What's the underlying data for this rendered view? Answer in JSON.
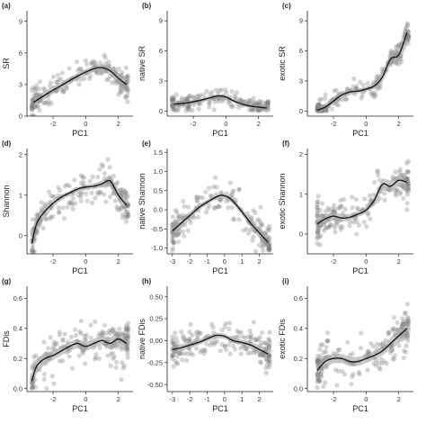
{
  "chart_data": [
    {
      "type": "scatter",
      "tag": "(a)",
      "xlabel": "PC1",
      "ylabel": "SR",
      "xlim": [
        -3.6,
        2.9
      ],
      "ylim": [
        0,
        10
      ],
      "xticks": [
        -2,
        0,
        2
      ],
      "yticks": [
        0,
        3,
        6,
        9
      ],
      "grid": false,
      "legend": "none",
      "smooth": {
        "x": [
          -3.2,
          -2.5,
          -1.5,
          -0.5,
          0.5,
          1.0,
          1.5,
          2.0,
          2.5
        ],
        "y": [
          1.3,
          2.0,
          2.9,
          3.8,
          4.5,
          4.6,
          4.3,
          3.6,
          3.0
        ]
      },
      "band": {
        "lower": [
          0.8,
          1.6,
          2.6,
          3.5,
          4.2,
          4.3,
          3.9,
          3.1,
          2.3
        ],
        "upper": [
          1.8,
          2.4,
          3.2,
          4.1,
          4.8,
          4.9,
          4.7,
          4.1,
          3.7
        ]
      },
      "cloud": {
        "count": 190,
        "spread": 1.5,
        "xmin": -3.3,
        "xmax": 2.6,
        "floor": 0
      }
    },
    {
      "type": "scatter",
      "tag": "(b)",
      "xlabel": "PC1",
      "ylabel": "native SR",
      "xlim": [
        -3.6,
        2.9
      ],
      "ylim": [
        -0.5,
        10
      ],
      "xticks": [
        -2,
        0,
        2
      ],
      "yticks": [
        0,
        3,
        6,
        9
      ],
      "grid": false,
      "legend": "none",
      "smooth": {
        "x": [
          -3.2,
          -2.5,
          -1.5,
          -0.5,
          0.0,
          0.5,
          1.0,
          1.5,
          2.0,
          2.5
        ],
        "y": [
          0.7,
          0.8,
          1.1,
          1.5,
          1.4,
          1.0,
          0.7,
          0.5,
          0.4,
          0.3
        ]
      },
      "band": {
        "lower": [
          0.4,
          0.6,
          0.9,
          1.3,
          1.2,
          0.8,
          0.5,
          0.3,
          0.1,
          -0.1
        ],
        "upper": [
          1.0,
          1.0,
          1.3,
          1.7,
          1.6,
          1.2,
          0.9,
          0.7,
          0.7,
          0.7
        ]
      },
      "cloud": {
        "count": 190,
        "spread": 1.0,
        "xmin": -3.3,
        "xmax": 2.6,
        "floor": 0
      }
    },
    {
      "type": "scatter",
      "tag": "(c)",
      "xlabel": "PC1",
      "ylabel": "exotic SR",
      "xlim": [
        -3.6,
        2.9
      ],
      "ylim": [
        -0.5,
        10
      ],
      "xticks": [
        -2,
        0,
        2
      ],
      "yticks": [
        0,
        3,
        6,
        9
      ],
      "grid": false,
      "legend": "none",
      "smooth": {
        "x": [
          -3.0,
          -2.5,
          -2.0,
          -1.5,
          -1.0,
          -0.5,
          0.0,
          0.5,
          1.0,
          1.5,
          2.0,
          2.5
        ],
        "y": [
          0.1,
          0.4,
          1.0,
          1.6,
          1.9,
          2.0,
          2.2,
          2.5,
          3.4,
          5.2,
          5.6,
          7.8
        ]
      },
      "band": {
        "lower": [
          -0.3,
          0.1,
          0.7,
          1.3,
          1.6,
          1.8,
          2.0,
          2.2,
          2.9,
          4.6,
          4.9,
          6.5
        ],
        "upper": [
          0.5,
          0.7,
          1.3,
          1.9,
          2.2,
          2.2,
          2.4,
          2.8,
          3.9,
          5.8,
          6.3,
          9.1
        ]
      },
      "cloud": {
        "count": 190,
        "spread": 1.1,
        "xmin": -3.0,
        "xmax": 2.6,
        "floor": 0
      }
    },
    {
      "type": "scatter",
      "tag": "(d)",
      "xlabel": "PC1",
      "ylabel": "Shannon",
      "xlim": [
        -3.6,
        2.9
      ],
      "ylim": [
        -0.45,
        2.15
      ],
      "xticks": [
        -2,
        0,
        2
      ],
      "yticks": [
        0,
        1,
        2
      ],
      "grid": false,
      "legend": "none",
      "smooth": {
        "x": [
          -3.3,
          -3.0,
          -2.5,
          -2.0,
          -1.5,
          -1.0,
          -0.5,
          0.0,
          0.5,
          1.0,
          1.5,
          2.0,
          2.5
        ],
        "y": [
          -0.2,
          0.3,
          0.6,
          0.8,
          0.95,
          1.05,
          1.15,
          1.2,
          1.22,
          1.28,
          1.35,
          1.0,
          0.75
        ]
      },
      "band": {
        "lower": [
          -0.5,
          0.05,
          0.45,
          0.7,
          0.88,
          1.0,
          1.1,
          1.15,
          1.15,
          1.2,
          1.22,
          0.85,
          0.55
        ],
        "upper": [
          0.1,
          0.55,
          0.75,
          0.9,
          1.02,
          1.1,
          1.2,
          1.25,
          1.29,
          1.36,
          1.48,
          1.15,
          0.95
        ]
      },
      "cloud": {
        "count": 190,
        "spread": 0.5,
        "xmin": -3.3,
        "xmax": 2.6,
        "floor": -0.4
      }
    },
    {
      "type": "scatter",
      "tag": "(e)",
      "xlabel": "PC1",
      "ylabel": "native Shannon",
      "xlim": [
        -3.3,
        2.8
      ],
      "ylim": [
        -1.15,
        1.6
      ],
      "xticks": [
        -3,
        -2,
        -1,
        0,
        1,
        2
      ],
      "yticks": [
        -1.0,
        -0.5,
        0.0,
        0.5,
        1.0,
        1.5
      ],
      "grid": false,
      "legend": "none",
      "smooth": {
        "x": [
          -3.0,
          -2.5,
          -2.0,
          -1.5,
          -1.0,
          -0.5,
          -0.2,
          0.2,
          0.5,
          1.0,
          1.5,
          2.0,
          2.5
        ],
        "y": [
          -0.55,
          -0.35,
          -0.15,
          0.05,
          0.2,
          0.33,
          0.38,
          0.33,
          0.22,
          -0.05,
          -0.35,
          -0.6,
          -0.85
        ]
      },
      "band": {
        "lower": [
          -0.75,
          -0.5,
          -0.25,
          -0.02,
          0.14,
          0.28,
          0.33,
          0.28,
          0.15,
          -0.14,
          -0.45,
          -0.72,
          -1.0
        ],
        "upper": [
          -0.35,
          -0.2,
          -0.05,
          0.12,
          0.26,
          0.38,
          0.43,
          0.38,
          0.29,
          0.04,
          -0.25,
          -0.48,
          -0.7
        ]
      },
      "cloud": {
        "count": 190,
        "spread": 0.55,
        "xmin": -3.0,
        "xmax": 2.6,
        "floor": -1.1
      }
    },
    {
      "type": "scatter",
      "tag": "(f)",
      "xlabel": "PC1",
      "ylabel": "exotic Shannon",
      "xlim": [
        -3.6,
        2.9
      ],
      "ylim": [
        -0.5,
        2.15
      ],
      "xticks": [
        -2,
        0,
        2
      ],
      "yticks": [
        0,
        1,
        2
      ],
      "grid": false,
      "legend": "none",
      "smooth": {
        "x": [
          -3.0,
          -2.5,
          -2.0,
          -1.5,
          -1.0,
          -0.5,
          0.0,
          0.5,
          1.0,
          1.5,
          2.0,
          2.5
        ],
        "y": [
          0.25,
          0.38,
          0.45,
          0.4,
          0.42,
          0.5,
          0.6,
          0.85,
          1.25,
          1.2,
          1.35,
          1.3
        ]
      },
      "band": {
        "lower": [
          0.05,
          0.25,
          0.35,
          0.3,
          0.34,
          0.43,
          0.52,
          0.75,
          1.1,
          1.05,
          1.2,
          1.05
        ],
        "upper": [
          0.45,
          0.51,
          0.55,
          0.5,
          0.5,
          0.57,
          0.68,
          0.95,
          1.4,
          1.35,
          1.5,
          1.55
        ]
      },
      "cloud": {
        "count": 190,
        "spread": 0.55,
        "xmin": -3.0,
        "xmax": 2.6,
        "floor": -0.45
      }
    },
    {
      "type": "scatter",
      "tag": "(g)",
      "xlabel": "PC1",
      "ylabel": "FDis",
      "xlim": [
        -3.6,
        2.9
      ],
      "ylim": [
        -0.02,
        0.68
      ],
      "xticks": [
        -2,
        0,
        2
      ],
      "yticks": [
        0.0,
        0.2,
        0.4,
        0.6
      ],
      "grid": false,
      "legend": "none",
      "smooth": {
        "x": [
          -3.3,
          -3.0,
          -2.5,
          -2.0,
          -1.5,
          -1.0,
          -0.5,
          0.0,
          0.5,
          1.0,
          1.5,
          2.0,
          2.5
        ],
        "y": [
          0.05,
          0.15,
          0.2,
          0.22,
          0.25,
          0.28,
          0.3,
          0.28,
          0.3,
          0.32,
          0.3,
          0.33,
          0.3
        ]
      },
      "band": {
        "lower": [
          0.0,
          0.1,
          0.16,
          0.19,
          0.22,
          0.25,
          0.27,
          0.25,
          0.27,
          0.29,
          0.26,
          0.28,
          0.24
        ],
        "upper": [
          0.1,
          0.2,
          0.24,
          0.25,
          0.28,
          0.31,
          0.33,
          0.31,
          0.33,
          0.35,
          0.34,
          0.38,
          0.36
        ]
      },
      "cloud": {
        "count": 190,
        "spread": 0.16,
        "xmin": -3.3,
        "xmax": 2.6,
        "floor": 0
      }
    },
    {
      "type": "scatter",
      "tag": "(h)",
      "xlabel": "PC1",
      "ylabel": "native FDis",
      "xlim": [
        -3.3,
        2.8
      ],
      "ylim": [
        -0.58,
        0.62
      ],
      "xticks": [
        -3,
        -2,
        -1,
        0,
        1,
        2
      ],
      "yticks": [
        -0.5,
        -0.25,
        0.0,
        0.25,
        0.5
      ],
      "grid": false,
      "legend": "none",
      "smooth": {
        "x": [
          -3.0,
          -2.5,
          -2.0,
          -1.5,
          -1.0,
          -0.5,
          0.0,
          0.5,
          1.0,
          1.5,
          2.0,
          2.5
        ],
        "y": [
          -0.1,
          -0.08,
          -0.05,
          -0.02,
          0.02,
          0.06,
          0.05,
          0.0,
          -0.02,
          -0.05,
          -0.1,
          -0.15
        ]
      },
      "band": {
        "lower": [
          -0.16,
          -0.12,
          -0.08,
          -0.05,
          -0.01,
          0.03,
          0.02,
          -0.03,
          -0.05,
          -0.09,
          -0.15,
          -0.21
        ],
        "upper": [
          -0.04,
          -0.04,
          -0.02,
          0.01,
          0.05,
          0.09,
          0.08,
          0.03,
          0.01,
          -0.01,
          -0.05,
          -0.09
        ]
      },
      "cloud": {
        "count": 190,
        "spread": 0.22,
        "xmin": -3.0,
        "xmax": 2.6,
        "floor": -0.55
      }
    },
    {
      "type": "scatter",
      "tag": "(i)",
      "xlabel": "PC1",
      "ylabel": "exotic FDis",
      "xlim": [
        -3.6,
        2.9
      ],
      "ylim": [
        -0.02,
        0.68
      ],
      "xticks": [
        -2,
        0,
        2
      ],
      "yticks": [
        0.0,
        0.2,
        0.4,
        0.6
      ],
      "grid": false,
      "legend": "none",
      "smooth": {
        "x": [
          -3.0,
          -2.5,
          -2.0,
          -1.5,
          -1.0,
          -0.5,
          0.0,
          0.5,
          1.0,
          1.5,
          2.0,
          2.5
        ],
        "y": [
          0.12,
          0.18,
          0.2,
          0.2,
          0.18,
          0.18,
          0.2,
          0.22,
          0.25,
          0.3,
          0.35,
          0.4
        ]
      },
      "band": {
        "lower": [
          0.07,
          0.14,
          0.17,
          0.17,
          0.15,
          0.15,
          0.17,
          0.19,
          0.22,
          0.26,
          0.3,
          0.33
        ],
        "upper": [
          0.17,
          0.22,
          0.23,
          0.23,
          0.21,
          0.21,
          0.23,
          0.25,
          0.28,
          0.34,
          0.4,
          0.47
        ]
      },
      "cloud": {
        "count": 190,
        "spread": 0.15,
        "xmin": -3.0,
        "xmax": 2.6,
        "floor": 0
      }
    }
  ]
}
